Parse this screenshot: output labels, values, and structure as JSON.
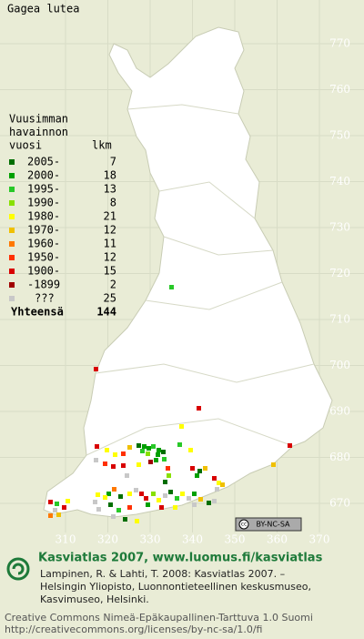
{
  "title": "Gagea lutea",
  "legend": {
    "header": [
      "Vuusimman",
      "havainnon",
      "vuosi"
    ],
    "count_header": "lkm",
    "entries": [
      {
        "label": "2005-",
        "count": 7,
        "color": "#006e00"
      },
      {
        "label": "2000-",
        "count": 18,
        "color": "#00a000"
      },
      {
        "label": "1995-",
        "count": 13,
        "color": "#28c828"
      },
      {
        "label": "1990-",
        "count": 8,
        "color": "#88e000"
      },
      {
        "label": "1980-",
        "count": 21,
        "color": "#ffff00"
      },
      {
        "label": "1970-",
        "count": 12,
        "color": "#f0c000"
      },
      {
        "label": "1960-",
        "count": 11,
        "color": "#ff7800"
      },
      {
        "label": "1950-",
        "count": 12,
        "color": "#ff3000"
      },
      {
        "label": "1900-",
        "count": 15,
        "color": "#d80000"
      },
      {
        "label": "-1899",
        "count": 2,
        "color": "#a00000"
      },
      {
        "label": "???",
        "count": 25,
        "color": "#c8c8c8"
      }
    ],
    "total_label": "Yhteensä",
    "total": 144
  },
  "grid": {
    "yticks": [
      770,
      760,
      750,
      740,
      730,
      720,
      710,
      700,
      690,
      680,
      670
    ],
    "xticks": [
      310,
      320,
      330,
      340,
      350,
      360,
      370
    ]
  },
  "license_badge": "BY-NC-SA",
  "footer": {
    "heading": "Kasviatlas 2007, www.luomus.fi/kasviatlas",
    "citation": [
      "Lampinen, R. & Lahti, T. 2008: Kasviatlas 2007. –",
      "Helsingin Yliopisto, Luonnontieteellinen keskusmuseo,",
      "Kasvimuseo, Helsinki."
    ],
    "license": [
      "Creative Commons Nimeä-Epäkaupallinen-Tarttuva 1.0 Suomi",
      "http://creativecommons.org/licenses/by-nc-sa/1.0/fi"
    ]
  }
}
